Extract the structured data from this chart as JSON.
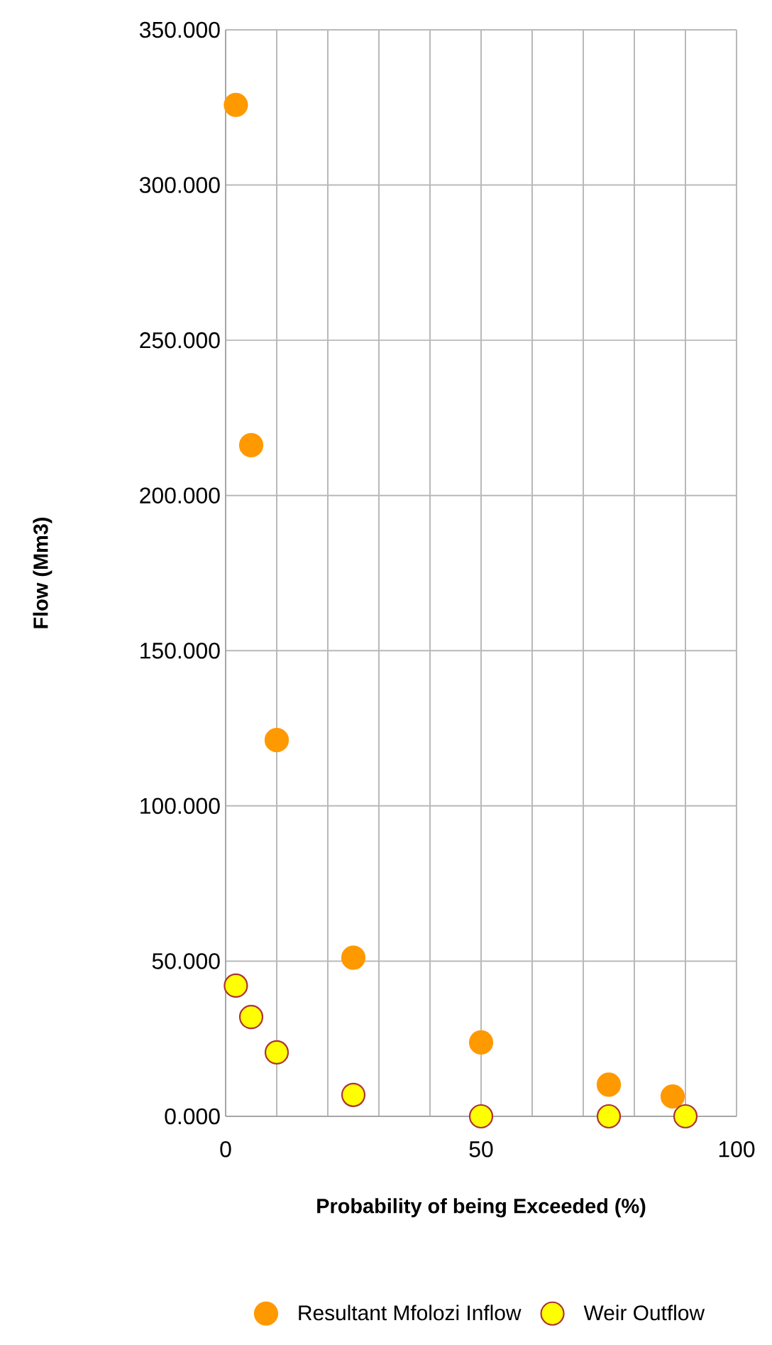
{
  "chart_data": {
    "type": "scatter",
    "xlabel": "Probability of being Exceeded (%)",
    "ylabel": "Flow (Mm3)",
    "series": [
      {
        "name": "Resultant Mfolozi Inflow",
        "color": "#ff9900",
        "x": [
          2,
          5,
          10,
          25,
          50,
          75,
          87.5
        ],
        "values": [
          325.8,
          216.2,
          121.2,
          51.1,
          23.8,
          10.2,
          6.4
        ]
      },
      {
        "name": "Weir Outflow",
        "color": "#ffff00",
        "x": [
          2,
          5,
          10,
          25,
          50,
          75,
          90
        ],
        "values": [
          42.1,
          32.0,
          20.6,
          6.9,
          0,
          0,
          0
        ]
      }
    ],
    "xlim": [
      0,
      100
    ],
    "xticks": [
      0,
      {
        "value": 10,
        "label": null
      },
      {
        "value": 20,
        "label": null
      },
      {
        "value": 30,
        "label": null
      },
      {
        "value": 40,
        "label": null
      },
      50,
      {
        "value": 60,
        "label": null
      },
      {
        "value": 70,
        "label": null
      },
      {
        "value": 80,
        "label": null
      },
      {
        "value": 90,
        "label": null
      },
      100
    ],
    "ylim": [
      0,
      350
    ],
    "yticks": [
      {
        "value": 0,
        "label": "0.000"
      },
      {
        "value": 50,
        "label": "50.000"
      },
      {
        "value": 100,
        "label": "100.000"
      },
      {
        "value": 150,
        "label": "150.000"
      },
      {
        "value": 200,
        "label": "200.000"
      },
      {
        "value": 250,
        "label": "250.000"
      },
      {
        "value": 300,
        "label": "300.000"
      },
      {
        "value": 350,
        "label": "350.000"
      }
    ],
    "grid": true,
    "legend": "bottom",
    "marker": "circle"
  }
}
